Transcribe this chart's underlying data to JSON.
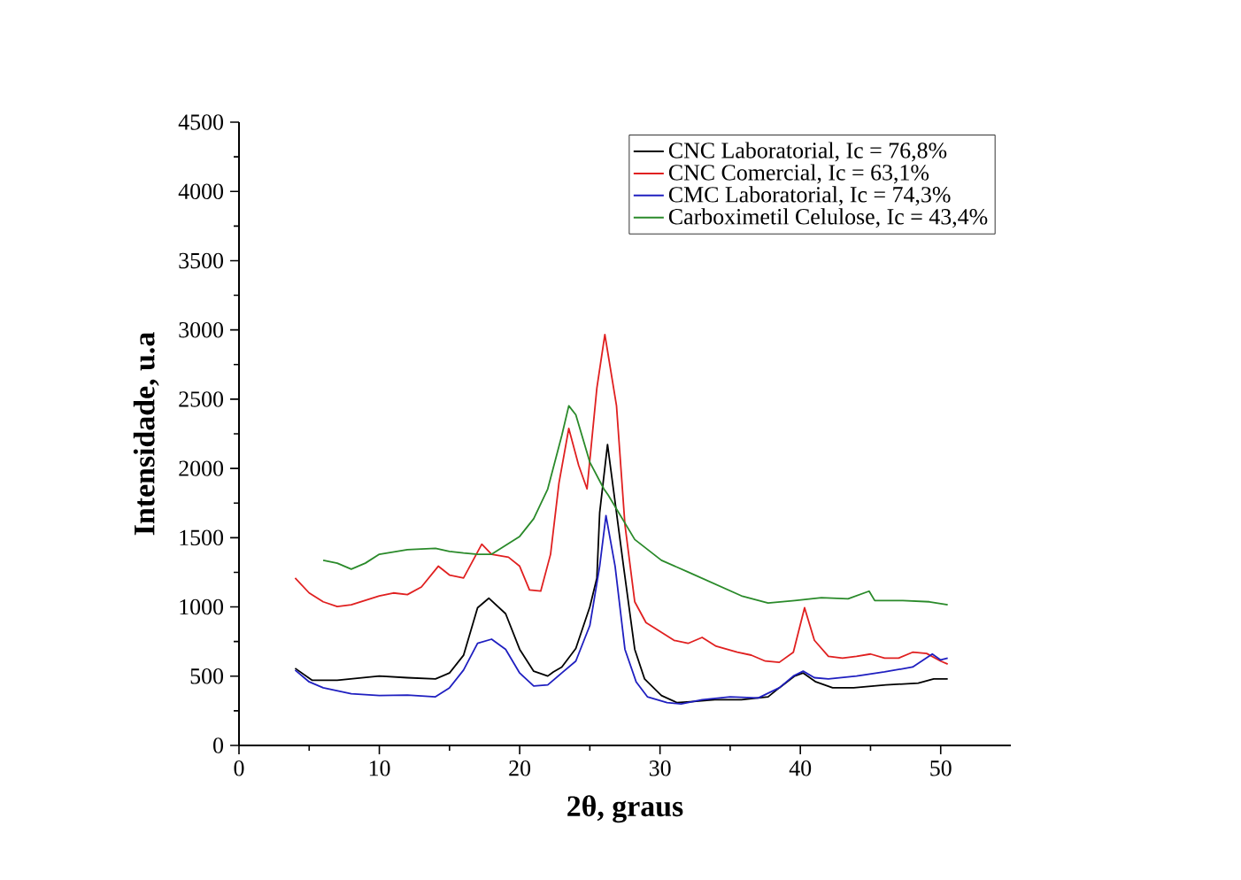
{
  "chart_data": {
    "type": "line",
    "xlabel": "2θ, graus",
    "ylabel": "Intensidade, u.a",
    "xlim": [
      0,
      55
    ],
    "ylim": [
      0,
      4500
    ],
    "xticks": [
      0,
      10,
      20,
      30,
      40,
      50
    ],
    "yticks": [
      0,
      500,
      1000,
      1500,
      2000,
      2500,
      3000,
      3500,
      4000,
      4500
    ],
    "grid": false,
    "legend": "top right",
    "marker": "none",
    "line_style": "solid",
    "series": [
      {
        "name": "CNC Laboratorial, Ic = 76,8%",
        "color": "#000000",
        "x": [
          4,
          5.2,
          7,
          10,
          12,
          14,
          15,
          16,
          17,
          17.8,
          19,
          20,
          21,
          22,
          22.4,
          23,
          24,
          25,
          25.5,
          25.7,
          26.26,
          27.4,
          28.2,
          28.9,
          30.1,
          31.2,
          32.4,
          33.9,
          35.8,
          37.7,
          38.5,
          39.6,
          40.2,
          41.1,
          42.3,
          43.8,
          46.1,
          48.4,
          49.5,
          50.5
        ],
        "values": [
          557,
          471,
          471,
          501,
          489,
          480,
          523,
          651,
          994,
          1063,
          951,
          694,
          536,
          501,
          531,
          566,
          700,
          1000,
          1209,
          1680,
          2173,
          1294,
          694,
          480,
          360,
          309,
          317,
          330,
          330,
          351,
          416,
          501,
          523,
          459,
          416,
          416,
          437,
          450,
          480,
          480
        ]
      },
      {
        "name": "CNC Comercial, Ic = 63,1%",
        "color": "#e02020",
        "x": [
          4,
          5,
          6,
          7,
          8,
          10,
          11,
          12,
          13,
          14.2,
          15,
          16,
          17.3,
          18,
          19.2,
          20,
          20.7,
          21.5,
          22.2,
          22.8,
          23.5,
          24.2,
          24.8,
          25.5,
          26.07,
          26.9,
          27.5,
          28.2,
          29,
          30,
          31,
          32,
          33,
          34,
          35.5,
          36.5,
          37.5,
          38.5,
          39.5,
          40.3,
          41,
          42,
          43,
          44,
          45,
          46,
          47,
          48,
          49,
          50,
          50.5
        ],
        "values": [
          1209,
          1101,
          1037,
          1003,
          1016,
          1080,
          1101,
          1089,
          1144,
          1294,
          1230,
          1209,
          1453,
          1380,
          1359,
          1294,
          1123,
          1114,
          1380,
          1894,
          2289,
          2023,
          1852,
          2580,
          2966,
          2452,
          1594,
          1037,
          887,
          823,
          759,
          737,
          780,
          716,
          673,
          652,
          609,
          600,
          673,
          994,
          759,
          643,
          630,
          643,
          660,
          630,
          630,
          673,
          664,
          609,
          587
        ]
      },
      {
        "name": "CMC Laboratorial, Ic = 74,3%",
        "color": "#1f1fc0",
        "x": [
          4,
          5,
          6,
          8,
          10,
          12,
          14,
          15,
          16,
          17,
          18,
          19,
          20,
          21,
          22,
          23,
          24,
          25,
          25.7,
          26.15,
          26.8,
          27.5,
          28.3,
          29.1,
          30.5,
          31.5,
          33,
          35,
          37,
          38.5,
          39.5,
          40.2,
          41,
          42,
          44,
          46,
          48,
          49.4,
          50,
          50.5
        ],
        "values": [
          544,
          459,
          416,
          373,
          360,
          364,
          351,
          416,
          544,
          737,
          767,
          694,
          523,
          429,
          437,
          523,
          609,
          866,
          1294,
          1659,
          1294,
          694,
          459,
          351,
          309,
          300,
          330,
          351,
          343,
          416,
          501,
          536,
          489,
          480,
          501,
          531,
          566,
          660,
          617,
          630
        ]
      },
      {
        "name": "Carboximetil Celulose, Ic = 43,4%",
        "color": "#2a8a2a",
        "x": [
          6,
          7,
          8,
          9,
          10,
          12,
          14,
          15,
          16,
          17,
          18,
          19,
          20,
          21,
          22,
          23,
          23.5,
          24,
          25,
          26,
          26.3,
          28.2,
          30.1,
          32,
          33.9,
          35.8,
          37.7,
          39.6,
          41.5,
          43.4,
          44.9,
          45.3,
          47.3,
          49.2,
          50.5
        ],
        "values": [
          1337,
          1316,
          1273,
          1316,
          1380,
          1414,
          1423,
          1401,
          1389,
          1380,
          1380,
          1444,
          1509,
          1637,
          1852,
          2237,
          2452,
          2387,
          2045,
          1852,
          1809,
          1487,
          1337,
          1252,
          1166,
          1080,
          1029,
          1046,
          1067,
          1059,
          1114,
          1046,
          1046,
          1037,
          1016
        ]
      }
    ]
  }
}
